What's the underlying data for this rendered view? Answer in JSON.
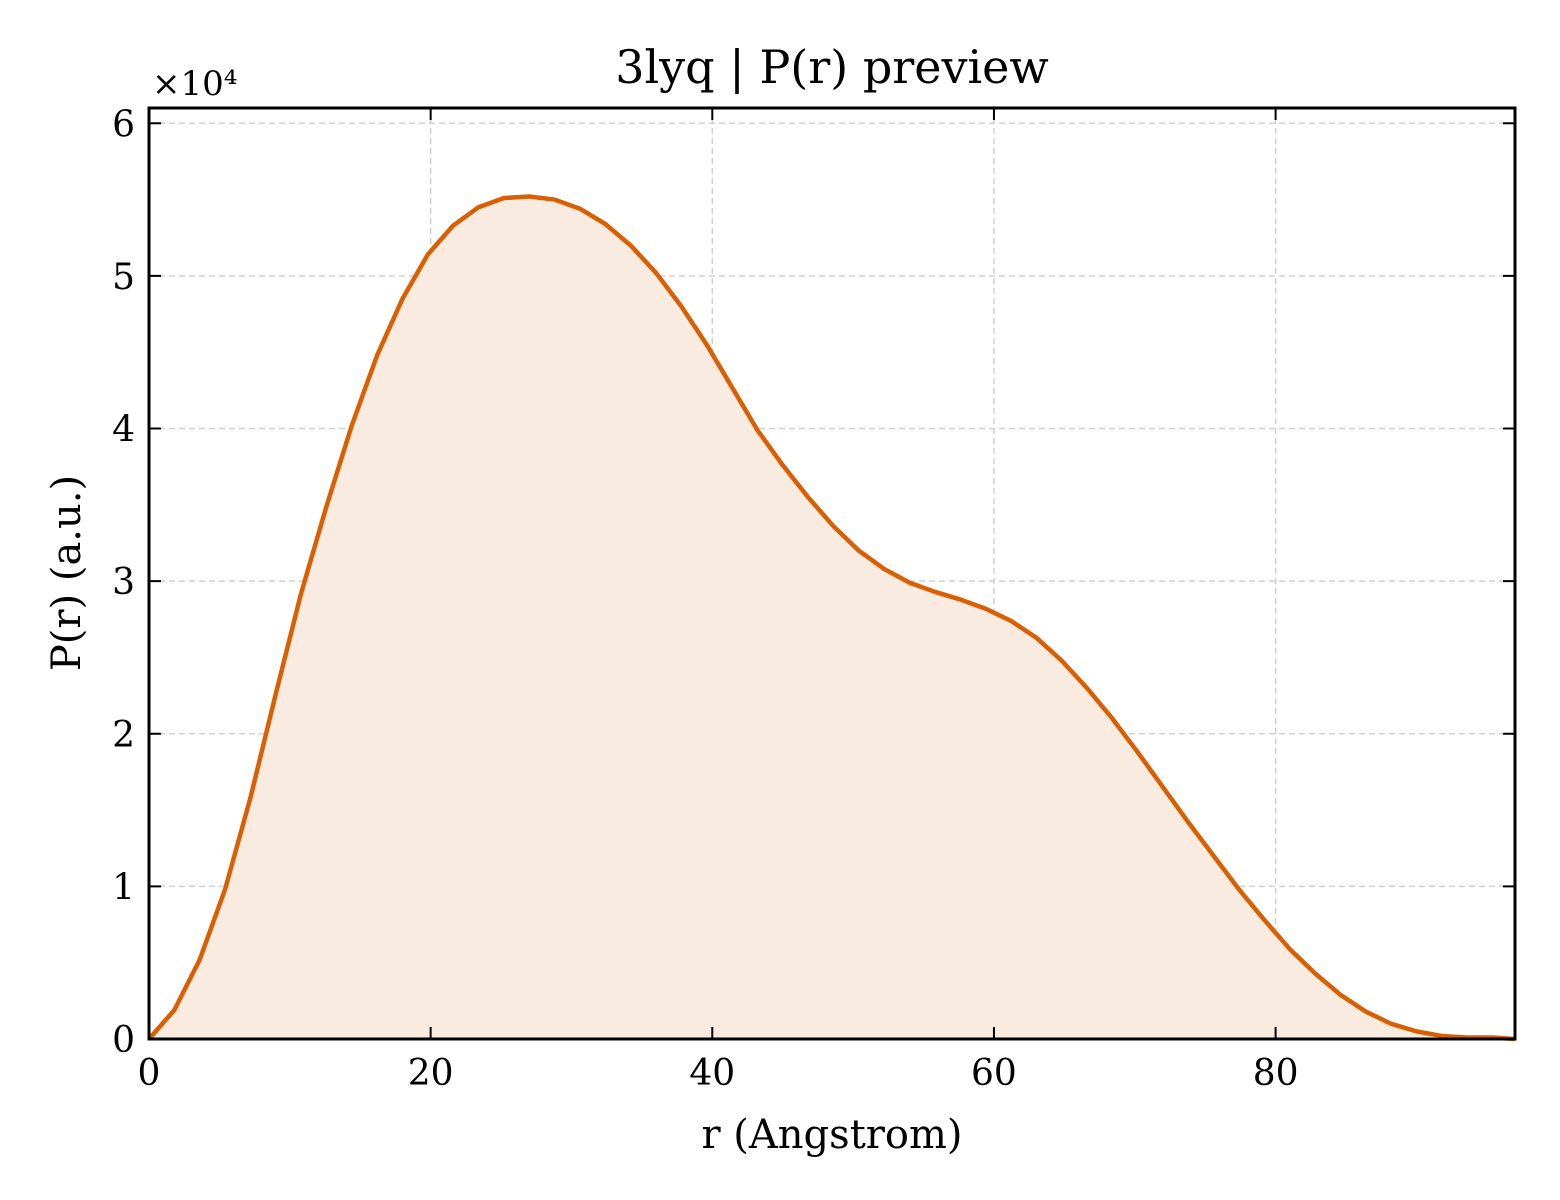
{
  "chart_data": {
    "type": "area",
    "title": "3lyq | P(r) preview",
    "xlabel": "r (Angstrom)",
    "ylabel": "P(r) (a.u.)",
    "y_offset_label": "×10⁴",
    "y_scale_factor": 10000,
    "xlim": [
      0,
      97
    ],
    "ylim": [
      0,
      6.1
    ],
    "x_ticks": [
      0,
      20,
      40,
      60,
      80
    ],
    "y_ticks": [
      0,
      1,
      2,
      3,
      4,
      5,
      6
    ],
    "grid": true,
    "colors": {
      "line": "#d95f02",
      "fill": "#f9ebe0"
    },
    "series": [
      {
        "x": [
          0,
          1.8,
          3.6,
          5.4,
          7.2,
          9.0,
          10.8,
          12.6,
          14.4,
          16.2,
          18.0,
          19.8,
          21.6,
          23.4,
          25.2,
          27.0,
          28.8,
          30.6,
          32.4,
          34.2,
          36.0,
          37.8,
          39.6,
          41.4,
          43.2,
          45.0,
          46.8,
          48.6,
          50.4,
          52.2,
          54.0,
          55.8,
          57.6,
          59.4,
          61.2,
          63.0,
          64.8,
          66.6,
          68.4,
          70.2,
          72.0,
          73.8,
          75.6,
          77.4,
          79.2,
          81.0,
          82.8,
          84.6,
          86.4,
          88.2,
          90.0,
          91.8,
          93.6,
          95.4,
          97.0
        ],
        "y": [
          0.0,
          0.19,
          0.52,
          0.98,
          1.58,
          2.26,
          2.92,
          3.49,
          4.02,
          4.48,
          4.85,
          5.14,
          5.33,
          5.45,
          5.51,
          5.52,
          5.5,
          5.44,
          5.34,
          5.2,
          5.02,
          4.8,
          4.55,
          4.27,
          3.99,
          3.76,
          3.55,
          3.36,
          3.2,
          3.08,
          2.99,
          2.93,
          2.88,
          2.82,
          2.74,
          2.63,
          2.48,
          2.3,
          2.1,
          1.88,
          1.65,
          1.42,
          1.2,
          0.98,
          0.78,
          0.59,
          0.43,
          0.29,
          0.18,
          0.1,
          0.05,
          0.02,
          0.01,
          0.01,
          0.0
        ]
      }
    ]
  }
}
